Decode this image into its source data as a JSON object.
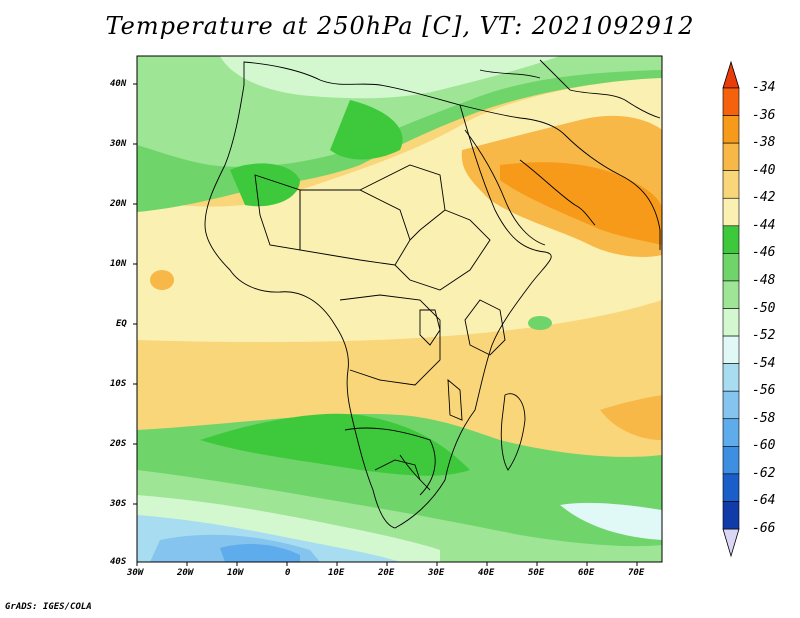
{
  "title": "Temperature at 250hPa [C], VT: 2021092912",
  "credit": "GrADS: IGES/COLA",
  "lat_labels": [
    "40N",
    "30N",
    "20N",
    "10N",
    "EQ",
    "10S",
    "20S",
    "30S",
    "40S"
  ],
  "lon_labels": [
    "30W",
    "20W",
    "10W",
    "0",
    "10E",
    "20E",
    "30E",
    "40E",
    "50E",
    "60E",
    "70E"
  ],
  "colorbar": {
    "labels": [
      "-34",
      "-36",
      "-38",
      "-40",
      "-42",
      "-44",
      "-46",
      "-48",
      "-50",
      "-52",
      "-54",
      "-56",
      "-58",
      "-60",
      "-62",
      "-64",
      "-66"
    ],
    "colors": [
      "#e83d0a",
      "#f4620d",
      "#f79a1a",
      "#f7b847",
      "#f9d67a",
      "#faf0b2",
      "#3ec93c",
      "#6fd46a",
      "#9ee596",
      "#d3f8cf",
      "#e0f8f6",
      "#a8dcf1",
      "#84c4ee",
      "#5eaceb",
      "#3e8fe2",
      "#1a5ec9",
      "#0f3ca8",
      "#07138a"
    ],
    "top_color": "#e83d0a",
    "bottom_color": "#dcd6f5"
  }
}
